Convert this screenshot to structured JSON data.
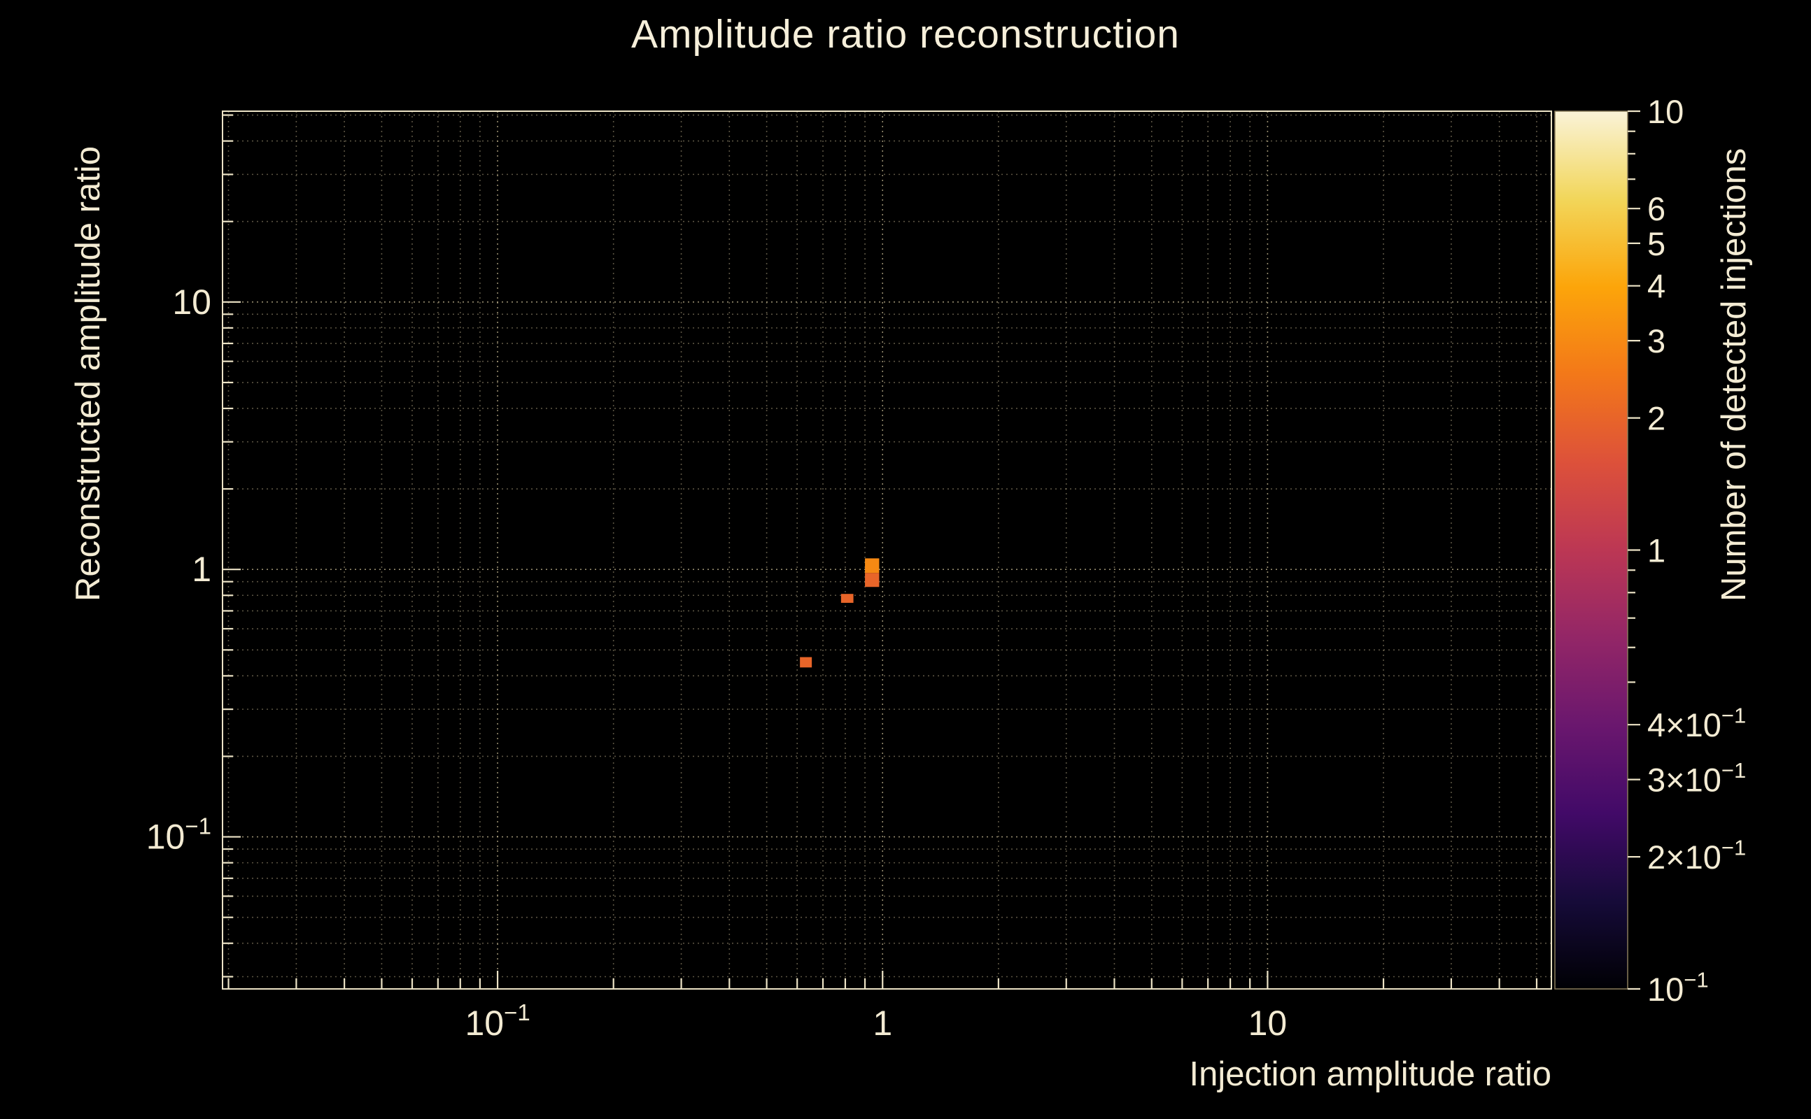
{
  "page": {
    "background": "#000000",
    "text_color": "#f3ebd3",
    "accent_color": "#e86529"
  },
  "chart_data": {
    "type": "heatmap",
    "title": "Amplitude ratio reconstruction",
    "xlabel": "Injection amplitude ratio",
    "ylabel": "Reconstructed amplitude ratio",
    "zlabel": "Number of detected injections",
    "xscale": "log",
    "yscale": "log",
    "zscale": "log",
    "xlim": [
      0.0193,
      54.6
    ],
    "ylim": [
      0.027,
      51.7
    ],
    "zlim": [
      0.1,
      10
    ],
    "grid": true,
    "grid_color": "#c9bb94",
    "axis_color": "#ece3c6",
    "legend_position": "right-colorbar",
    "x_ticks": [
      {
        "value": 0.1,
        "base": "10",
        "exp": "−1"
      },
      {
        "value": 1,
        "base": "1",
        "exp": ""
      },
      {
        "value": 10,
        "base": "10",
        "exp": ""
      }
    ],
    "y_ticks": [
      {
        "value": 0.1,
        "base": "10",
        "exp": "−1"
      },
      {
        "value": 1,
        "base": "1",
        "exp": ""
      },
      {
        "value": 10,
        "base": "10",
        "exp": ""
      }
    ],
    "colorbar_ticks": [
      {
        "value": 10,
        "base": "10",
        "exp": ""
      },
      {
        "value": 6,
        "base": "6",
        "exp": ""
      },
      {
        "value": 5,
        "base": "5",
        "exp": ""
      },
      {
        "value": 4,
        "base": "4",
        "exp": ""
      },
      {
        "value": 3,
        "base": "3",
        "exp": ""
      },
      {
        "value": 2,
        "base": "2",
        "exp": ""
      },
      {
        "value": 1,
        "base": "1",
        "exp": ""
      },
      {
        "value": 0.4,
        "base": "4×10",
        "exp": "−1"
      },
      {
        "value": 0.3,
        "base": "3×10",
        "exp": "−1"
      },
      {
        "value": 0.2,
        "base": "2×10",
        "exp": "−1"
      },
      {
        "value": 0.1,
        "base": "10",
        "exp": "−1"
      }
    ],
    "palette": [
      "#000004",
      "#160b39",
      "#420a68",
      "#6a176e",
      "#932667",
      "#bc3754",
      "#dd513a",
      "#f37819",
      "#fca50a",
      "#f2d65a",
      "#faf3d8"
    ],
    "bins": [
      {
        "x_min": 0.9,
        "x_max": 0.98,
        "y_min": 0.97,
        "y_max": 1.1,
        "count": 3
      },
      {
        "x_min": 0.9,
        "x_max": 0.98,
        "y_min": 0.86,
        "y_max": 0.97,
        "count": 2
      },
      {
        "x_min": 0.78,
        "x_max": 0.84,
        "y_min": 0.75,
        "y_max": 0.81,
        "count": 2
      },
      {
        "x_min": 0.61,
        "x_max": 0.655,
        "y_min": 0.43,
        "y_max": 0.47,
        "count": 2
      }
    ]
  }
}
